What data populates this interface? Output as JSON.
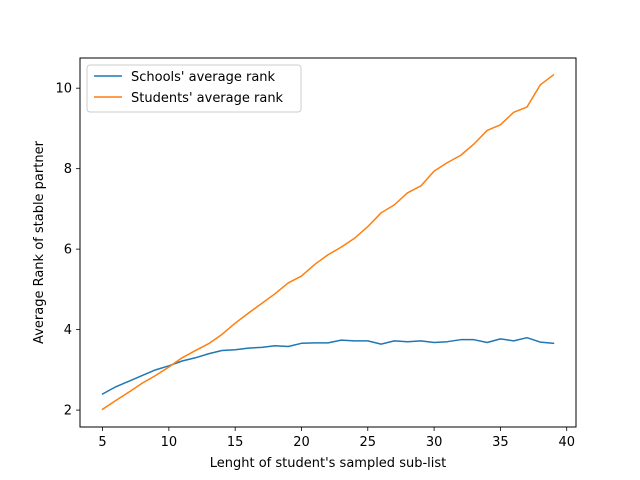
{
  "chart_data": {
    "type": "line",
    "xlabel": "Lenght of student's sampled sub-list",
    "ylabel": "Average Rank of stable partner",
    "xlim": [
      3.3,
      40.7
    ],
    "ylim": [
      1.58,
      10.75
    ],
    "xticks": [
      5,
      10,
      15,
      20,
      25,
      30,
      35,
      40
    ],
    "yticks": [
      2,
      4,
      6,
      8,
      10
    ],
    "grid": false,
    "legend_position": "upper-left",
    "x": [
      5,
      6,
      7,
      8,
      9,
      10,
      11,
      12,
      13,
      14,
      15,
      16,
      17,
      18,
      19,
      20,
      21,
      22,
      23,
      24,
      25,
      26,
      27,
      28,
      29,
      30,
      31,
      32,
      33,
      34,
      35,
      36,
      37,
      38,
      39
    ],
    "series": [
      {
        "name": "Schools' average rank",
        "color": "#1f77b4",
        "values": [
          2.4,
          2.58,
          2.72,
          2.86,
          3.0,
          3.1,
          3.22,
          3.3,
          3.4,
          3.48,
          3.5,
          3.54,
          3.56,
          3.6,
          3.58,
          3.66,
          3.67,
          3.67,
          3.74,
          3.72,
          3.72,
          3.64,
          3.72,
          3.7,
          3.72,
          3.68,
          3.7,
          3.75,
          3.75,
          3.68,
          3.77,
          3.72,
          3.8,
          3.69,
          3.66
        ]
      },
      {
        "name": "Students' average rank",
        "color": "#ff7f0e",
        "values": [
          2.02,
          2.24,
          2.45,
          2.67,
          2.86,
          3.07,
          3.3,
          3.48,
          3.65,
          3.88,
          4.16,
          4.41,
          4.65,
          4.89,
          5.16,
          5.33,
          5.62,
          5.86,
          6.05,
          6.27,
          6.56,
          6.9,
          7.1,
          7.4,
          7.57,
          7.94,
          8.15,
          8.33,
          8.61,
          8.95,
          9.09,
          9.4,
          9.53,
          10.08,
          10.33
        ]
      }
    ]
  }
}
